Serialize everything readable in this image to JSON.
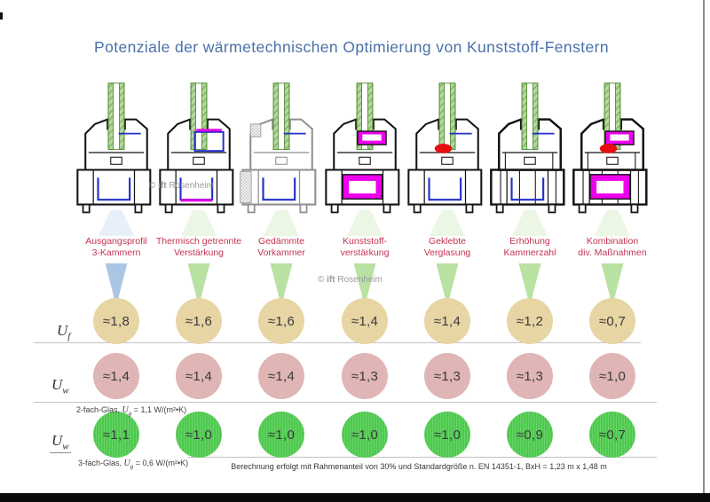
{
  "slide": {
    "title": "Potenziale der wärmetechnischen Optimierung von  Kunststoff-Fenstern",
    "footnote": "Berechnung  erfolgt mit Rahmenanteil von 30% und Standardgröße n. EN 14351-1, BxH = 1,23 m  x 1,48 m",
    "watermark": {
      "copyright": "©",
      "brand": "ift",
      "name": "Rosenheim"
    }
  },
  "columns": [
    {
      "label_line1": "Ausgangsprofil",
      "label_line2": "3-Kammern",
      "icon": "window-profile-3-chambers-icon",
      "features": [
        "steel-reinforcement"
      ],
      "cone_color": "#a6c2e4",
      "cone_faint_color": "#d3e2f2"
    },
    {
      "label_line1": "Thermisch getrennte",
      "label_line2": "Verstärkung",
      "icon": "window-profile-thermal-break-icon",
      "features": [
        "steel-reinforcement",
        "thermal-separation-strips"
      ],
      "cone_color": "#b5df9d",
      "cone_faint_color": "#ddeecd"
    },
    {
      "label_line1": "Gedämmte",
      "label_line2": "Vorkammer",
      "icon": "window-profile-insulated-prechamber-icon",
      "features": [
        "steel-reinforcement",
        "insulated-prechamber",
        "light-outline"
      ],
      "cone_color": "#b5df9d",
      "cone_faint_color": "#ddeecd"
    },
    {
      "label_line1": "Kunststoff-",
      "label_line2": "verstärkung",
      "icon": "window-profile-plastic-reinforcement-icon",
      "features": [
        "plastic-reinforcement"
      ],
      "cone_color": "#b5df9d",
      "cone_faint_color": "#ddeecd"
    },
    {
      "label_line1": "Geklebte",
      "label_line2": "Verglasung",
      "icon": "window-profile-glued-glazing-icon",
      "features": [
        "steel-reinforcement",
        "glued-glazing"
      ],
      "cone_color": "#b5df9d",
      "cone_faint_color": "#ddeecd"
    },
    {
      "label_line1": "Erhöhung",
      "label_line2": "Kammerzahl",
      "icon": "window-profile-more-chambers-icon",
      "features": [
        "steel-reinforcement",
        "extra-chambers"
      ],
      "cone_color": "#b5df9d",
      "cone_faint_color": "#ddeecd"
    },
    {
      "label_line1": "Kombination",
      "label_line2": "div. Maßnahmen",
      "icon": "window-profile-combination-icon",
      "features": [
        "glued-glazing",
        "plastic-reinforcement",
        "extra-chambers"
      ],
      "cone_color": "#b5df9d",
      "cone_faint_color": "#ddeecd"
    }
  ],
  "rows": [
    {
      "id": "uf",
      "symbol": "U",
      "subscript": "f",
      "circle_color": "#e7d5a4",
      "texture": false,
      "values": [
        "≈1,8",
        "≈1,6",
        "≈1,6",
        "≈1,4",
        "≈1,4",
        "≈1,2",
        "≈0,7"
      ]
    },
    {
      "id": "uw2",
      "symbol": "U",
      "subscript": "w",
      "circle_color": "#e0b5b5",
      "texture": false,
      "subtitle": {
        "prefix": "2-fach-Glas, ",
        "symbol": "U",
        "subscript": "g",
        "suffix": " = 1,1 W/(m²•K)"
      },
      "values": [
        "≈1,4",
        "≈1,4",
        "≈1,4",
        "≈1,3",
        "≈1,3",
        "≈1,3",
        "≈1,0"
      ]
    },
    {
      "id": "uw3",
      "symbol": "U",
      "subscript": "w",
      "circle_color": "#4ec94e",
      "texture": true,
      "subtitle": {
        "prefix": "3-fach-Glas, ",
        "symbol": "U",
        "subscript": "g",
        "suffix": " = 0,6 W/(m²•K)"
      },
      "values": [
        "≈1,1",
        "≈1,0",
        "≈1,0",
        "≈1,0",
        "≈1,0",
        "≈0,9",
        "≈0,7"
      ]
    }
  ],
  "chart_data": {
    "type": "table",
    "title": "Potenziale der wärmetechnischen Optimierung von Kunststoff-Fenstern",
    "unit": "W/(m²•K)",
    "categories": [
      "Ausgangsprofil 3-Kammern",
      "Thermisch getrennte Verstärkung",
      "Gedämmte Vorkammer",
      "Kunststoffverstärkung",
      "Geklebte Verglasung",
      "Erhöhung Kammerzahl",
      "Kombination div. Maßnahmen"
    ],
    "series": [
      {
        "name": "Uf",
        "values": [
          1.8,
          1.6,
          1.6,
          1.4,
          1.4,
          1.2,
          0.7
        ]
      },
      {
        "name": "Uw (2-fach-Glas, Ug = 1,1)",
        "values": [
          1.4,
          1.4,
          1.4,
          1.3,
          1.3,
          1.3,
          1.0
        ]
      },
      {
        "name": "Uw (3-fach-Glas, Ug = 0,6)",
        "values": [
          1.1,
          1.0,
          1.0,
          1.0,
          1.0,
          0.9,
          0.7
        ]
      }
    ],
    "note": "Berechnung erfolgt mit Rahmenanteil von 30% und Standardgröße n. EN 14351-1, BxH = 1,23 m x 1,48 m"
  }
}
